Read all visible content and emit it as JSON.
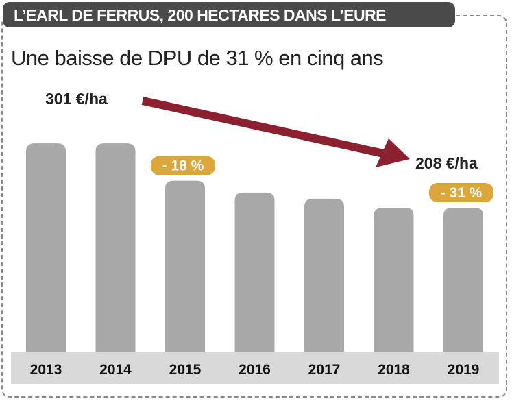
{
  "header": {
    "title": "L’EARL DE FERRUS, 200 HECTARES DANS L’EURE"
  },
  "subtitle": "Une baisse de DPU de 31 % en cinq ans",
  "colors": {
    "bar": "#a8a8a8",
    "arrow": "#8b2030",
    "badge": "#dba73a",
    "header_bg": "#4a4a4a",
    "axis_band": "#d9d9d9"
  },
  "chart_data": {
    "type": "bar",
    "categories": [
      "2013",
      "2014",
      "2015",
      "2016",
      "2017",
      "2018",
      "2019"
    ],
    "values": [
      301,
      301,
      247,
      230,
      221,
      208,
      208
    ],
    "ylim": [
      0,
      320
    ],
    "grid": false,
    "annotations": {
      "start_value": "301 €/ha",
      "end_value": "208 €/ha",
      "badges": [
        {
          "year": "2015",
          "text": "- 18 %"
        },
        {
          "year": "2019",
          "text": "- 31 %"
        }
      ]
    }
  }
}
